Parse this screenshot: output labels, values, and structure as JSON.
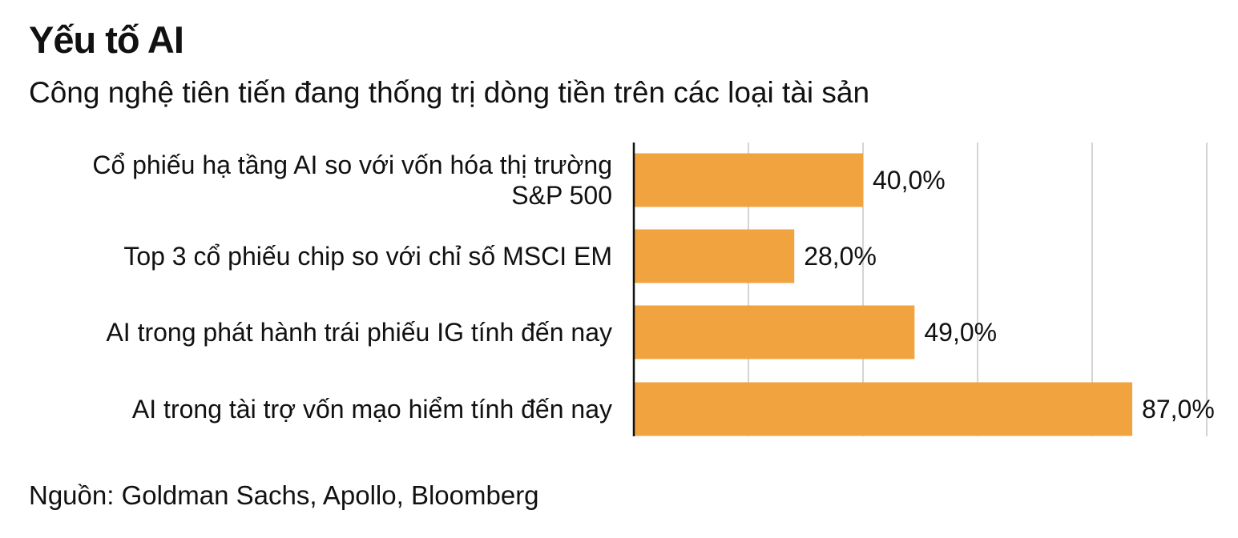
{
  "chart_data": {
    "type": "bar",
    "orientation": "horizontal",
    "title": "Yếu tố AI",
    "subtitle": "Công nghệ tiên tiến đang thống trị dòng tiền trên các loại tài sản",
    "categories": [
      [
        "Cổ phiếu hạ tầng AI so với vốn hóa thị trường",
        "S&P 500"
      ],
      [
        "Top 3 cổ phiếu chip so với chỉ số MSCI EM"
      ],
      [
        "AI trong phát hành trái phiếu IG tính đến nay"
      ],
      [
        "AI trong tài trợ vốn mạo hiểm tính đến nay"
      ]
    ],
    "values": [
      40.0,
      28.0,
      49.0,
      87.0
    ],
    "value_labels": [
      "40,0%",
      "28,0%",
      "49,0%",
      "87,0%"
    ],
    "xlim": [
      0,
      100
    ],
    "gridlines": [
      20,
      40,
      60,
      80,
      100
    ],
    "grid": true,
    "legend": "none",
    "bar_color": "#F0A33F",
    "grid_color": "#D4D4D4",
    "axis_color": "#111111",
    "source": "Nguồn: Goldman Sachs, Apollo, Bloomberg"
  }
}
